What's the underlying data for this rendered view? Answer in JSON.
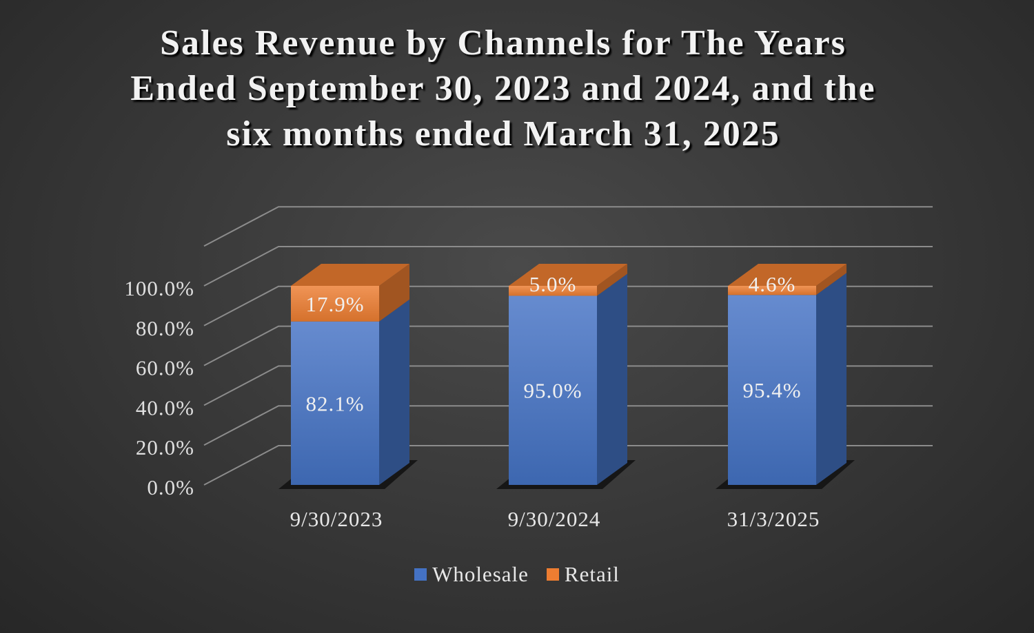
{
  "chart_data": {
    "type": "bar",
    "stacked": true,
    "three_d": true,
    "title": "Sales Revenue by Channels for The Years Ended September 30, 2023 and 2024, and the six months ended March 31, 2025",
    "categories": [
      "9/30/2023",
      "9/30/2024",
      "31/3/2025"
    ],
    "series": [
      {
        "name": "Wholesale",
        "color": "#4472C4",
        "values": [
          82.1,
          95.0,
          95.4
        ],
        "labels": [
          "82.1%",
          "95.0%",
          "95.4%"
        ]
      },
      {
        "name": "Retail",
        "color": "#ED7D31",
        "values": [
          17.9,
          5.0,
          4.6
        ],
        "labels": [
          "17.9%",
          "5.0%",
          "4.6%"
        ]
      }
    ],
    "yticks": [
      "0.0%",
      "20.0%",
      "40.0%",
      "60.0%",
      "80.0%",
      "100.0%"
    ],
    "ylim": [
      0,
      100
    ],
    "grid": true,
    "legend": "bottom"
  }
}
